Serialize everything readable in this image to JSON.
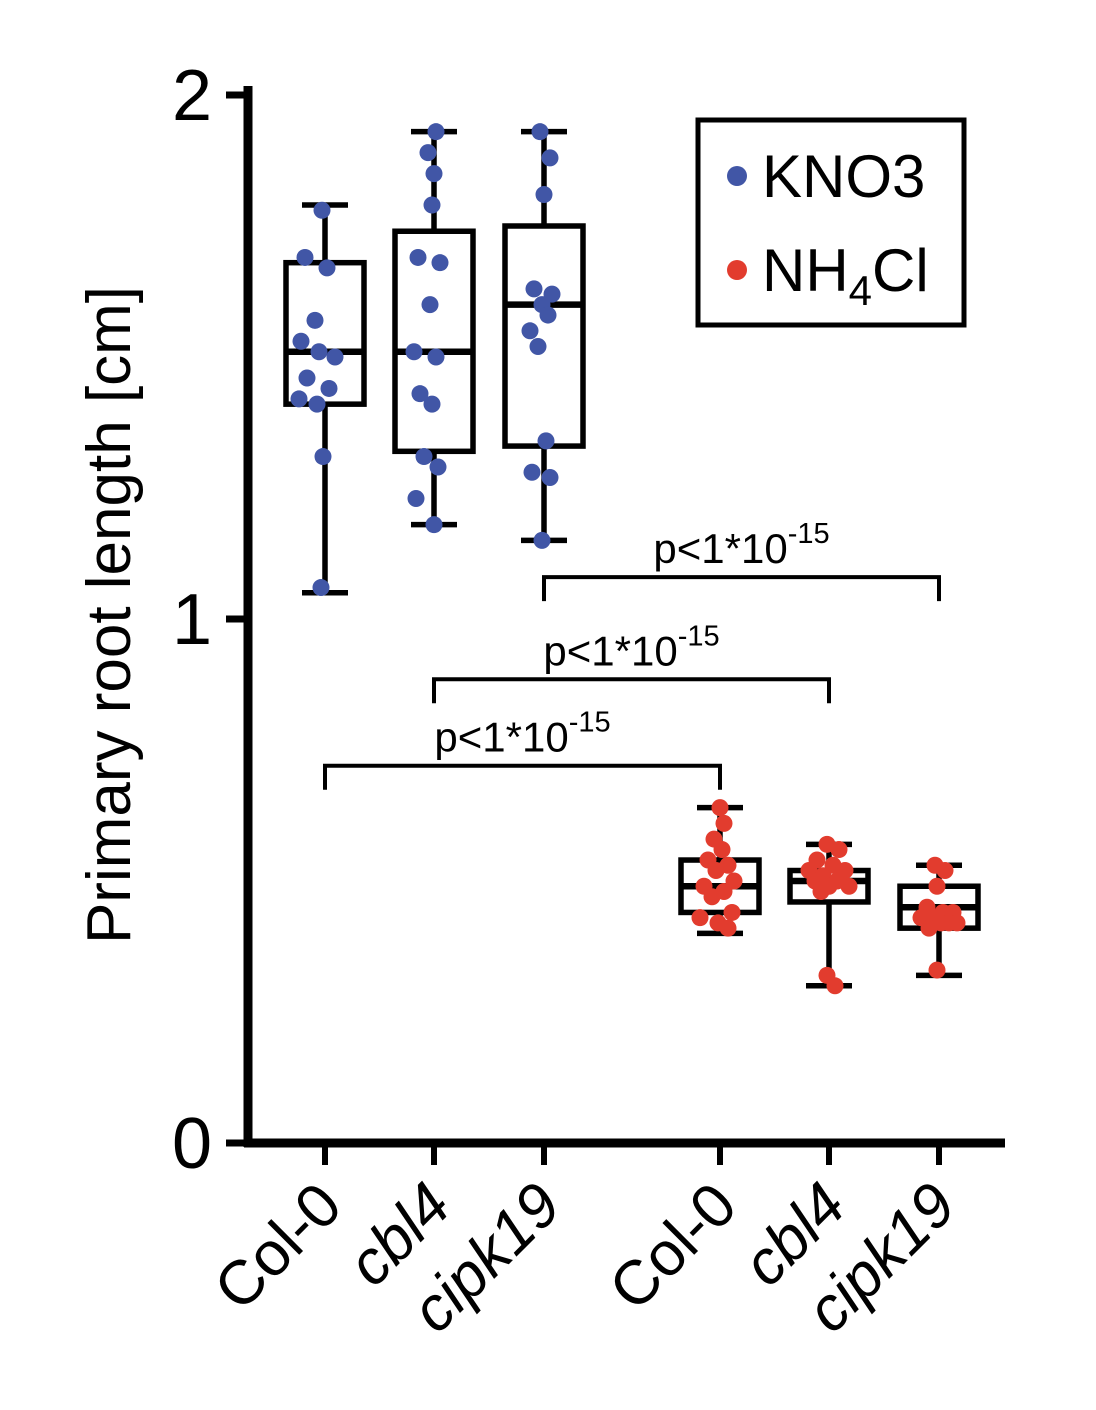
{
  "figure": {
    "background": "#ffffff",
    "axis_color": "#000000"
  },
  "chart_data": {
    "type": "boxplot",
    "title": "",
    "xlabel": "",
    "ylabel": "Primary root length [cm]",
    "ylim": [
      0,
      2
    ],
    "yticks": [
      0,
      1,
      2
    ],
    "grid": false,
    "legend": {
      "position": "top-right",
      "border_color": "#000000",
      "items": [
        {
          "name": "KNO3",
          "color": "#4156a6",
          "parts": [
            {
              "t": "KNO3"
            }
          ]
        },
        {
          "name": "NH4Cl",
          "color": "#e23c2e",
          "parts": [
            {
              "t": "NH"
            },
            {
              "t": "4",
              "sub": true
            },
            {
              "t": "Cl"
            }
          ]
        }
      ]
    },
    "groups": [
      {
        "label": "Col-0",
        "italic": false,
        "condition": "KNO3",
        "color": "#4156a6",
        "box": {
          "whisker_low": 1.05,
          "q1": 1.41,
          "median": 1.51,
          "q3": 1.68,
          "whisker_high": 1.79
        },
        "points": [
          [
            -3,
            1.78
          ],
          [
            -20,
            1.69
          ],
          [
            2,
            1.67
          ],
          [
            -10,
            1.57
          ],
          [
            -24,
            1.53
          ],
          [
            -6,
            1.51
          ],
          [
            10,
            1.5
          ],
          [
            -18,
            1.46
          ],
          [
            4,
            1.44
          ],
          [
            -26,
            1.42
          ],
          [
            -8,
            1.41
          ],
          [
            -2,
            1.31
          ],
          [
            -4,
            1.06
          ]
        ]
      },
      {
        "label": "cbl4",
        "italic": true,
        "condition": "KNO3",
        "color": "#4156a6",
        "box": {
          "whisker_low": 1.18,
          "q1": 1.32,
          "median": 1.51,
          "q3": 1.74,
          "whisker_high": 1.93
        },
        "points": [
          [
            2,
            1.93
          ],
          [
            -6,
            1.89
          ],
          [
            0,
            1.85
          ],
          [
            -2,
            1.79
          ],
          [
            -16,
            1.69
          ],
          [
            6,
            1.68
          ],
          [
            -4,
            1.6
          ],
          [
            -20,
            1.51
          ],
          [
            2,
            1.5
          ],
          [
            -14,
            1.43
          ],
          [
            -2,
            1.41
          ],
          [
            -10,
            1.31
          ],
          [
            4,
            1.29
          ],
          [
            -18,
            1.23
          ],
          [
            0,
            1.18
          ]
        ]
      },
      {
        "label": "cipk19",
        "italic": true,
        "condition": "KNO3",
        "color": "#4156a6",
        "box": {
          "whisker_low": 1.15,
          "q1": 1.33,
          "median": 1.6,
          "q3": 1.75,
          "whisker_high": 1.93
        },
        "points": [
          [
            -4,
            1.93
          ],
          [
            6,
            1.88
          ],
          [
            0,
            1.81
          ],
          [
            -10,
            1.63
          ],
          [
            8,
            1.62
          ],
          [
            -2,
            1.6
          ],
          [
            4,
            1.58
          ],
          [
            -14,
            1.55
          ],
          [
            -6,
            1.52
          ],
          [
            2,
            1.34
          ],
          [
            -12,
            1.28
          ],
          [
            6,
            1.27
          ],
          [
            -2,
            1.15
          ]
        ]
      },
      {
        "label": "Col-0",
        "italic": false,
        "condition": "NH4Cl",
        "color": "#e23c2e",
        "box": {
          "whisker_low": 0.4,
          "q1": 0.44,
          "median": 0.49,
          "q3": 0.54,
          "whisker_high": 0.64
        },
        "points": [
          [
            0,
            0.64
          ],
          [
            4,
            0.61
          ],
          [
            -6,
            0.58
          ],
          [
            2,
            0.56
          ],
          [
            -12,
            0.54
          ],
          [
            8,
            0.53
          ],
          [
            -4,
            0.52
          ],
          [
            14,
            0.5
          ],
          [
            -16,
            0.49
          ],
          [
            4,
            0.48
          ],
          [
            -8,
            0.47
          ],
          [
            12,
            0.44
          ],
          [
            -20,
            0.43
          ],
          [
            -2,
            0.42
          ],
          [
            8,
            0.41
          ]
        ]
      },
      {
        "label": "cbl4",
        "italic": true,
        "condition": "NH4Cl",
        "color": "#e23c2e",
        "box": {
          "whisker_low": 0.3,
          "q1": 0.46,
          "median": 0.5,
          "q3": 0.52,
          "whisker_high": 0.57
        },
        "points": [
          [
            -2,
            0.57
          ],
          [
            10,
            0.56
          ],
          [
            -12,
            0.54
          ],
          [
            4,
            0.53
          ],
          [
            -20,
            0.52
          ],
          [
            16,
            0.52
          ],
          [
            -6,
            0.51
          ],
          [
            8,
            0.5
          ],
          [
            -14,
            0.5
          ],
          [
            0,
            0.49
          ],
          [
            20,
            0.49
          ],
          [
            -8,
            0.48
          ],
          [
            -2,
            0.32
          ],
          [
            6,
            0.3
          ]
        ]
      },
      {
        "label": "cipk19",
        "italic": true,
        "condition": "NH4Cl",
        "color": "#e23c2e",
        "box": {
          "whisker_low": 0.32,
          "q1": 0.41,
          "median": 0.45,
          "q3": 0.49,
          "whisker_high": 0.53
        },
        "points": [
          [
            -4,
            0.53
          ],
          [
            6,
            0.52
          ],
          [
            -2,
            0.49
          ],
          [
            -12,
            0.45
          ],
          [
            4,
            0.44
          ],
          [
            14,
            0.44
          ],
          [
            -18,
            0.43
          ],
          [
            -6,
            0.43
          ],
          [
            2,
            0.42
          ],
          [
            10,
            0.42
          ],
          [
            18,
            0.42
          ],
          [
            -10,
            0.41
          ],
          [
            -2,
            0.33
          ]
        ]
      }
    ],
    "annotations": [
      {
        "text": "p<1*10",
        "exponent": "-15",
        "from": 0,
        "to": 3,
        "y": 0.72
      },
      {
        "text": "p<1*10",
        "exponent": "-15",
        "from": 1,
        "to": 4,
        "y": 0.885
      },
      {
        "text": "p<1*10",
        "exponent": "-15",
        "from": 2,
        "to": 5,
        "y": 1.08
      }
    ]
  }
}
